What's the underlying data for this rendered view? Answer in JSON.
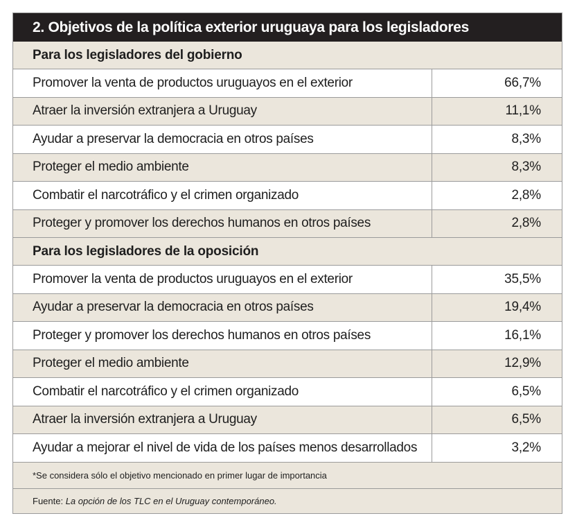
{
  "title": "2. Objetivos de la política exterior uruguaya para los legisladores",
  "sections": [
    {
      "heading": "Para los legisladores del gobierno",
      "rows": [
        {
          "label": "Promover la venta de productos uruguayos en el exterior",
          "value": "66,7%"
        },
        {
          "label": "Atraer la inversión extranjera a Uruguay",
          "value": "11,1%"
        },
        {
          "label": "Ayudar a preservar la democracia en otros países",
          "value": "8,3%"
        },
        {
          "label": "Proteger el medio ambiente",
          "value": "8,3%"
        },
        {
          "label": "Combatir el narcotráfico y el crimen organizado",
          "value": "2,8%"
        },
        {
          "label": "Proteger y promover los derechos humanos en otros países",
          "value": "2,8%"
        }
      ]
    },
    {
      "heading": "Para los legisladores de la oposición",
      "rows": [
        {
          "label": "Promover la venta de productos uruguayos en el exterior",
          "value": "35,5%"
        },
        {
          "label": "Ayudar a preservar la democracia en otros países",
          "value": "19,4%"
        },
        {
          "label": "Proteger y promover los derechos humanos en otros países",
          "value": "16,1%"
        },
        {
          "label": "Proteger el medio ambiente",
          "value": "12,9%"
        },
        {
          "label": "Combatir el narcotráfico y el crimen organizado",
          "value": "6,5%"
        },
        {
          "label": "Atraer la inversión extranjera a Uruguay",
          "value": "6,5%"
        },
        {
          "label": "Ayudar a mejorar el nivel de vida de los países menos desarrollados",
          "value": "3,2%"
        }
      ]
    }
  ],
  "note": "*Se considera sólo el objetivo mencionado en primer lugar de importancia",
  "source_prefix": "Fuente: ",
  "source_title": "La opción de los TLC en el Uruguay contemporáneo."
}
